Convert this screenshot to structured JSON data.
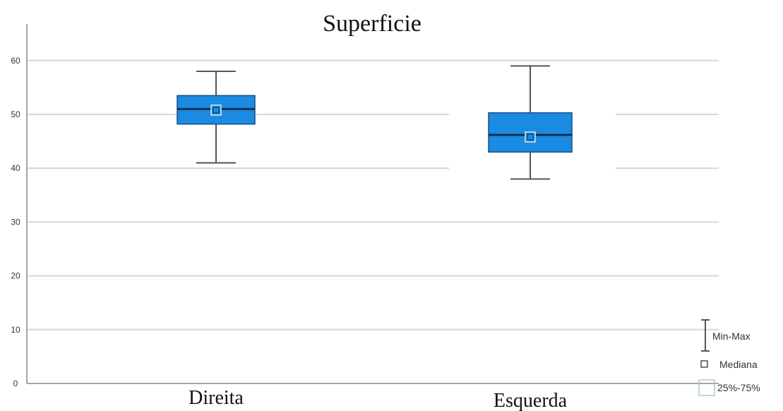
{
  "chart_data": {
    "type": "boxplot",
    "title": "Superficie",
    "xlabel": "",
    "ylabel": "",
    "ylim": [
      0,
      65
    ],
    "yticks": [
      0,
      10,
      20,
      30,
      40,
      50,
      60
    ],
    "grid": true,
    "categories": [
      "Direita",
      "Esquerda"
    ],
    "boxes": [
      {
        "category": "Direita",
        "min": 41,
        "q1": 48.2,
        "median": 51,
        "q3": 53.5,
        "max": 58,
        "marker": 50.8,
        "color": "#1a8be0"
      },
      {
        "category": "Esquerda",
        "min": 38,
        "q1": 43,
        "median": 46.2,
        "q3": 50.3,
        "max": 59,
        "marker": 45.8,
        "color": "#1a8be0"
      }
    ],
    "legend": {
      "position": "bottom-right",
      "items": [
        {
          "symbol": "whisker",
          "label": "Min-Max"
        },
        {
          "symbol": "square",
          "label": "Mediana"
        },
        {
          "symbol": "box",
          "label": "25%-75%"
        }
      ]
    }
  }
}
